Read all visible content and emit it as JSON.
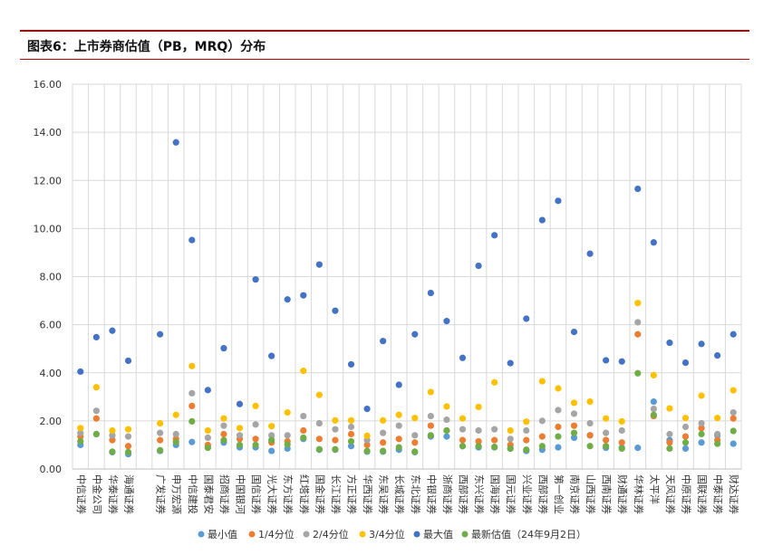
{
  "header": {
    "title": "图表6：上市券商估值（PB，MRQ）分布"
  },
  "colors": {
    "accent_line": "#c00000",
    "min": "#5b9bd5",
    "q1": "#ed7d31",
    "q2": "#a5a5a5",
    "q3": "#ffc000",
    "max": "#4472c4",
    "latest": "#70ad47"
  },
  "chart_data": {
    "type": "scatter",
    "title": "",
    "xlabel": "",
    "ylabel": "",
    "ylim": [
      0,
      16
    ],
    "yticks": [
      "0.00",
      "2.00",
      "4.00",
      "6.00",
      "8.00",
      "10.00",
      "12.00",
      "14.00",
      "16.00"
    ],
    "grid": true,
    "legend_position": "bottom",
    "categories": [
      "中信证券",
      "中金公司",
      "华泰证券",
      "海通证券",
      "",
      "广发证券",
      "申万宏源",
      "中信建投",
      "国泰君安",
      "招商证券",
      "中国银河",
      "国信证券",
      "光大证券",
      "东方证券",
      "红塔证券",
      "国金证券",
      "长江证券",
      "方正证券",
      "华西证券",
      "东吴证券",
      "长城证券",
      "东北证券",
      "中银证券",
      "浙商证券",
      "西部证券",
      "东兴证券",
      "国海证券",
      "国元证券",
      "兴业证券",
      "西部证券",
      "第一创业",
      "南京证券",
      "山西证券",
      "西南证券",
      "财通证券",
      "华林证券",
      "太平洋",
      "天风证券",
      "中原证券",
      "国联证券",
      "中泰证券",
      "财达证券"
    ],
    "series": [
      {
        "name": "最小值",
        "values": [
          1.0,
          1.45,
          0.7,
          0.62,
          null,
          0.75,
          1.0,
          1.12,
          0.9,
          1.1,
          0.9,
          0.9,
          0.75,
          0.85,
          1.25,
          0.8,
          0.8,
          0.95,
          0.72,
          0.72,
          0.8,
          0.7,
          1.35,
          1.35,
          0.95,
          0.9,
          0.9,
          0.85,
          0.75,
          0.8,
          0.9,
          1.3,
          1.4,
          0.88,
          0.88,
          0.88,
          2.8,
          1.2,
          0.85,
          1.1,
          1.4,
          1.05
        ]
      },
      {
        "name": "1/4分位",
        "values": [
          1.35,
          2.1,
          1.2,
          0.95,
          null,
          1.2,
          1.25,
          2.62,
          1.0,
          1.45,
          1.25,
          1.25,
          1.1,
          1.15,
          1.6,
          1.25,
          1.2,
          1.45,
          1.0,
          1.1,
          1.25,
          1.1,
          1.8,
          1.6,
          1.2,
          1.15,
          1.2,
          1.0,
          1.2,
          1.35,
          1.75,
          1.8,
          1.4,
          1.2,
          1.1,
          5.6,
          2.2,
          1.1,
          1.35,
          1.7,
          1.2,
          2.1
        ]
      },
      {
        "name": "2/4分位",
        "values": [
          1.5,
          2.42,
          1.4,
          1.35,
          null,
          1.5,
          1.45,
          3.15,
          1.3,
          1.8,
          1.4,
          1.85,
          1.4,
          1.4,
          2.2,
          1.9,
          1.65,
          1.75,
          1.2,
          1.5,
          1.8,
          1.4,
          2.2,
          2.05,
          1.65,
          1.6,
          1.65,
          1.25,
          1.6,
          2.0,
          2.45,
          2.3,
          1.9,
          1.5,
          1.6,
          6.1,
          2.5,
          1.45,
          1.75,
          1.9,
          1.45,
          2.35
        ]
      },
      {
        "name": "3/4分位",
        "values": [
          1.7,
          3.4,
          1.6,
          1.65,
          null,
          1.9,
          2.25,
          4.28,
          1.6,
          2.1,
          1.7,
          2.62,
          1.78,
          2.35,
          4.08,
          3.08,
          2.02,
          2.02,
          1.38,
          2.02,
          2.25,
          2.12,
          3.2,
          2.6,
          2.1,
          2.58,
          3.6,
          1.6,
          1.97,
          3.65,
          3.35,
          2.75,
          2.8,
          2.1,
          1.98,
          6.9,
          3.9,
          2.52,
          2.12,
          3.05,
          2.12,
          3.27
        ]
      },
      {
        "name": "最大值",
        "values": [
          4.05,
          5.48,
          5.75,
          4.5,
          null,
          5.6,
          13.58,
          9.52,
          3.28,
          5.02,
          2.7,
          7.88,
          4.7,
          7.05,
          7.22,
          8.5,
          6.58,
          4.35,
          2.5,
          5.32,
          3.5,
          5.6,
          7.32,
          6.15,
          4.62,
          8.45,
          9.72,
          4.4,
          6.25,
          10.35,
          11.15,
          5.7,
          8.95,
          4.52,
          4.47,
          11.65,
          9.42,
          5.25,
          4.42,
          5.2,
          4.72,
          5.6
        ]
      },
      {
        "name": "最新估值（24年9月2日）",
        "values": [
          1.15,
          1.45,
          0.72,
          0.7,
          null,
          0.78,
          1.12,
          1.98,
          0.88,
          1.2,
          1.0,
          1.0,
          1.2,
          1.02,
          1.3,
          0.82,
          0.82,
          1.15,
          0.75,
          0.75,
          0.9,
          0.72,
          1.4,
          1.6,
          0.95,
          0.95,
          0.92,
          0.85,
          0.8,
          0.95,
          1.35,
          1.5,
          0.95,
          0.95,
          0.85,
          3.98,
          2.25,
          0.85,
          1.1,
          1.45,
          1.05,
          1.58
        ]
      }
    ]
  }
}
